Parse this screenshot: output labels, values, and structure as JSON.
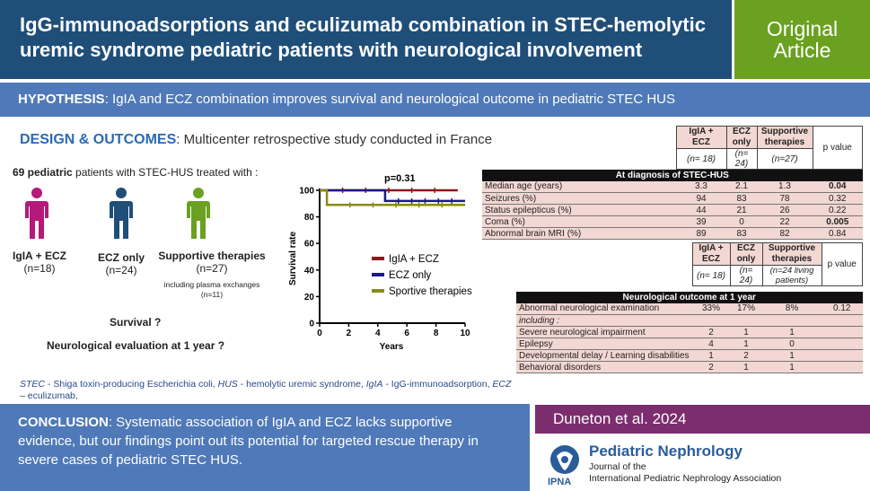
{
  "header": {
    "title": "IgG-immunoadsorptions and eculizumab combination in STEC-hemolytic uremic syndrome pediatric patients with neurological involvement",
    "badge_line1": "Original",
    "badge_line2": "Article"
  },
  "hypothesis": {
    "label": "HYPOTHESIS",
    "text": ": IgIA and ECZ combination improves survival and neurological outcome in pediatric STEC HUS"
  },
  "design": {
    "label": "DESIGN & OUTCOMES",
    "text": ":   Multicenter retrospective study conducted in France"
  },
  "intro": {
    "count": "69 pediatric",
    "text": " patients with STEC-HUS treated with :"
  },
  "groups": [
    {
      "label": "IgIA + ECZ",
      "n": "(n=18)",
      "color": "#b5197a"
    },
    {
      "label": "ECZ only",
      "n": "(n=24)",
      "color": "#1f4e79"
    },
    {
      "label": "Supportive therapies",
      "n": "(n=27)",
      "note1": "including plasma exchanges",
      "note2": "(n=11)",
      "color": "#6aa121"
    }
  ],
  "questions": {
    "survival": "Survival ?",
    "neuro": "Neurological evaluation at 1 year ?"
  },
  "chart_data": {
    "type": "line",
    "annotation": "p=0.31",
    "xlabel": "Years",
    "ylabel": "Survival rate",
    "xlim": [
      0,
      10
    ],
    "ylim": [
      0,
      100
    ],
    "xticks": [
      0,
      2,
      4,
      6,
      8,
      10
    ],
    "yticks": [
      0,
      20,
      40,
      60,
      80,
      100
    ],
    "series": [
      {
        "name": "IgIA + ECZ",
        "color": "#8b1a1a",
        "points": [
          [
            0,
            100
          ],
          [
            9.5,
            100
          ]
        ]
      },
      {
        "name": "ECZ only",
        "color": "#1a1a8b",
        "points": [
          [
            0,
            100
          ],
          [
            4.5,
            100
          ],
          [
            4.5,
            92
          ],
          [
            10,
            92
          ]
        ]
      },
      {
        "name": "Sportive therapies",
        "color": "#8a8a1a",
        "points": [
          [
            0,
            100
          ],
          [
            0.5,
            100
          ],
          [
            0.5,
            89
          ],
          [
            10,
            89
          ]
        ]
      }
    ]
  },
  "table1": {
    "headers": [
      "IgIA + ECZ",
      "ECZ only",
      "Supportive therapies",
      "p value"
    ],
    "ns": [
      "(n= 18)",
      "(n= 24)",
      "(n=27)"
    ],
    "section": "At diagnosis of STEC-HUS",
    "rows": [
      {
        "label": "Median age (years)",
        "v": [
          "3.3",
          "2.1",
          "1.3"
        ],
        "p": "0.04",
        "bold": true
      },
      {
        "label": "Seizures (%)",
        "v": [
          "94",
          "83",
          "78"
        ],
        "p": "0.32",
        "bold": false
      },
      {
        "label": "Status epilepticus (%)",
        "v": [
          "44",
          "21",
          "26"
        ],
        "p": "0.22",
        "bold": false
      },
      {
        "label": "Coma (%)",
        "v": [
          "39",
          "0",
          "22"
        ],
        "p": "0.005",
        "bold": true
      },
      {
        "label": "Abnormal brain MRI (%)",
        "v": [
          "89",
          "83",
          "82"
        ],
        "p": "0.84",
        "bold": false
      }
    ]
  },
  "table2": {
    "headers": [
      "IgIA + ECZ",
      "ECZ only",
      "Supportive therapies",
      "p value"
    ],
    "ns": [
      "(n= 18)",
      "(n= 24)",
      "(n=24 living patients)"
    ],
    "section": "Neurological outcome at 1 year",
    "rows": [
      {
        "label": "Abnormal neurological examination",
        "v": [
          "33%",
          "17%",
          "8%"
        ],
        "p": "0.12"
      },
      {
        "label": "including :",
        "v": [
          "",
          "",
          ""
        ],
        "p": "",
        "italic": true
      },
      {
        "label": "Severe neurological impairment",
        "v": [
          "2",
          "1",
          "1"
        ],
        "p": ""
      },
      {
        "label": "Epilepsy",
        "v": [
          "4",
          "1",
          "0"
        ],
        "p": ""
      },
      {
        "label": "Developmental delay / Learning disabilities",
        "v": [
          "1",
          "2",
          "1"
        ],
        "p": ""
      },
      {
        "label": "Behavioral disorders",
        "v": [
          "2",
          "1",
          "1"
        ],
        "p": ""
      }
    ]
  },
  "abbreviations": {
    "t1": "STEC",
    "d1": " - Shiga toxin-producing Escherichia coli, ",
    "t2": "HUS",
    "d2": " - hemolytic uremic syndrome, ",
    "t3": "IgIA",
    "d3": " - IgG-immunoadsorption, ",
    "t4": "ECZ",
    "d4": " – eculizumab,"
  },
  "conclusion": {
    "label": "CONCLUSION",
    "text": ": Systematic association of IgIA and ECZ lacks supportive evidence, but our findings point out its potential for targeted rescue therapy in severe cases of pediatric STEC HUS."
  },
  "citation": "Duneton et al. 2024",
  "journal": {
    "name": "Pediatric Nephrology",
    "sub1": "Journal of the",
    "sub2": "International Pediatric Nephrology Association",
    "logo_text": "IPNA"
  }
}
